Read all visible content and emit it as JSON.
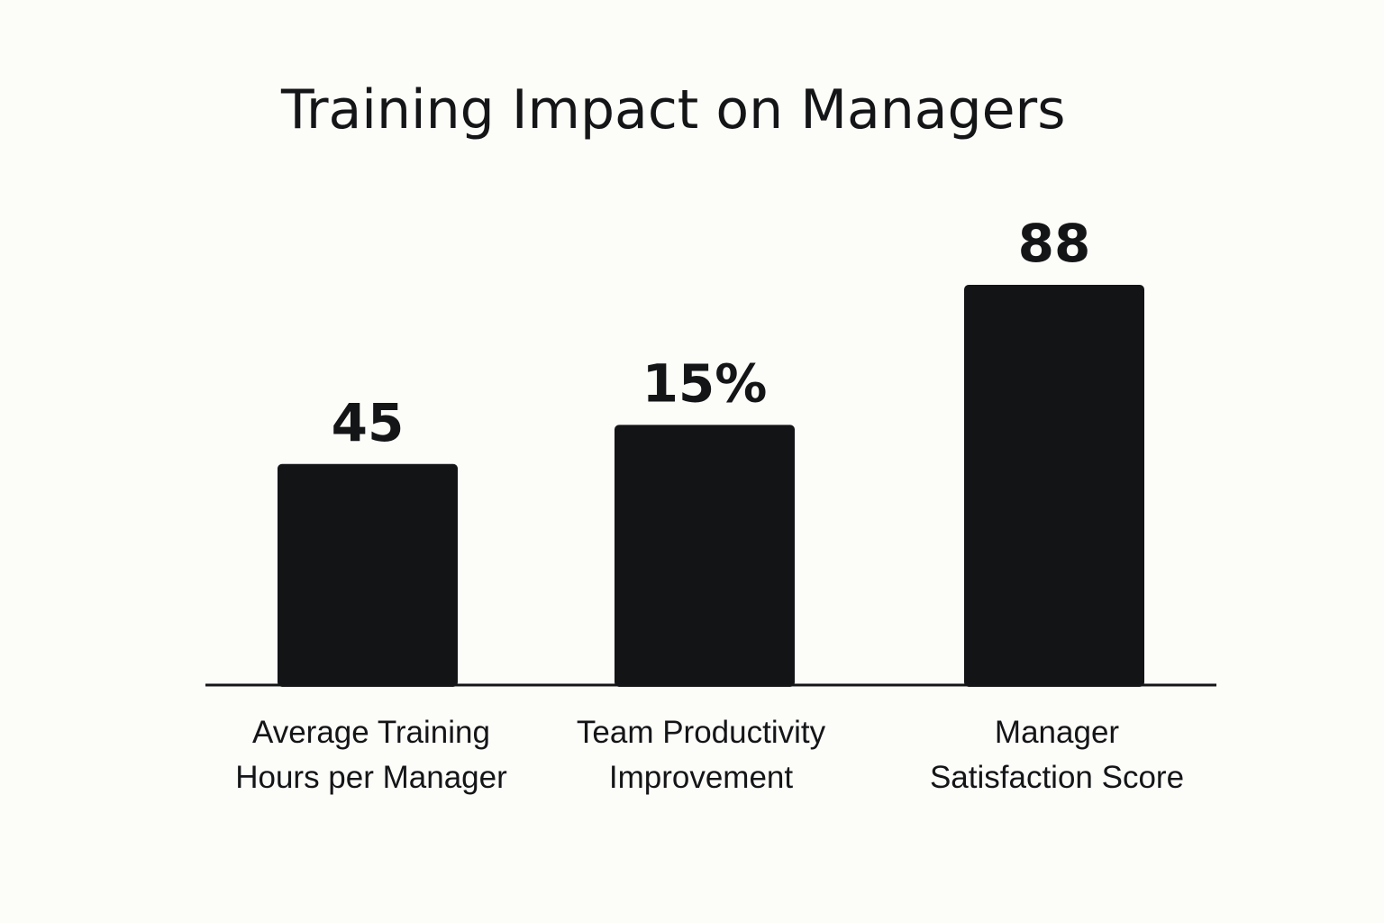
{
  "colors": {
    "background": "#fcfcf9",
    "bar": "#131416",
    "text": "#141517",
    "axis": "#141517"
  },
  "chart_data": {
    "type": "bar",
    "title": "Training Impact on Managers",
    "xlabel": "",
    "ylabel": "",
    "grid": false,
    "legend": "none",
    "ylim": [
      0,
      100
    ],
    "categories": [
      [
        "Average Training",
        "Hours per Manager"
      ],
      [
        "Team Productivity",
        "Improvement"
      ],
      [
        "Manager",
        "Satisfaction Score"
      ]
    ],
    "values": [
      45,
      15,
      88
    ],
    "value_labels": [
      "45",
      "15%",
      "88"
    ]
  }
}
